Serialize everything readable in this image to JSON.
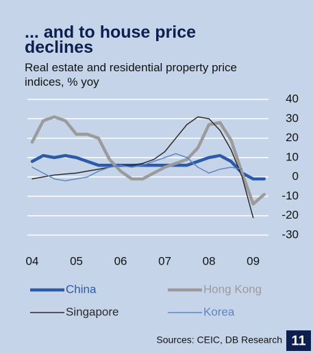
{
  "chart_data": {
    "type": "line",
    "title": "... and to house price declines",
    "subtitle": "Real estate and residential property price indices, % yoy",
    "source": "Sources: CEIC, DB Research",
    "page_number": "11",
    "x": [
      2004,
      2004.25,
      2004.5,
      2004.75,
      2005,
      2005.25,
      2005.5,
      2005.75,
      2006,
      2006.25,
      2006.5,
      2006.75,
      2007,
      2007.25,
      2007.5,
      2007.75,
      2008,
      2008.25,
      2008.5,
      2008.75,
      2009,
      2009.25
    ],
    "xlim": [
      2004,
      2009.3
    ],
    "xticks": [
      {
        "value": 2004,
        "label": "04"
      },
      {
        "value": 2005,
        "label": "05"
      },
      {
        "value": 2006,
        "label": "06"
      },
      {
        "value": 2007,
        "label": "07"
      },
      {
        "value": 2008,
        "label": "08"
      },
      {
        "value": 2009,
        "label": "09"
      }
    ],
    "ylim": [
      -30,
      40
    ],
    "yticks": [
      40,
      30,
      20,
      10,
      0,
      -10,
      -20,
      -30
    ],
    "grid": true,
    "series": [
      {
        "name": "China",
        "color": "#2b5ba8",
        "width": 4.5,
        "values": [
          8,
          11,
          10,
          11,
          10,
          8,
          6,
          6,
          6,
          6,
          6,
          6,
          6,
          6,
          6,
          8,
          10,
          11,
          8,
          2,
          -1,
          -1
        ]
      },
      {
        "name": "Hong Kong",
        "color": "#9b9b9b",
        "width": 4.5,
        "values": [
          18,
          29,
          31,
          29,
          22,
          22,
          20,
          9,
          3,
          -1,
          -1,
          2,
          5,
          7,
          9,
          15,
          27,
          28,
          19,
          2,
          -14,
          -9
        ]
      },
      {
        "name": "Singapore",
        "color": "#2a2a2a",
        "width": 1.5,
        "values": [
          -1,
          0,
          1,
          1.5,
          2,
          3,
          4,
          5,
          6,
          6,
          7,
          9,
          13,
          20,
          27,
          31,
          30,
          24,
          14,
          0,
          -21,
          null
        ]
      },
      {
        "name": "Korea",
        "color": "#5b86c6",
        "width": 1.5,
        "values": [
          5,
          2,
          -1,
          -2,
          -1,
          0,
          3,
          5,
          6,
          5,
          6,
          8,
          10,
          12,
          10,
          5,
          2,
          4,
          5,
          4,
          null,
          null
        ]
      }
    ]
  }
}
